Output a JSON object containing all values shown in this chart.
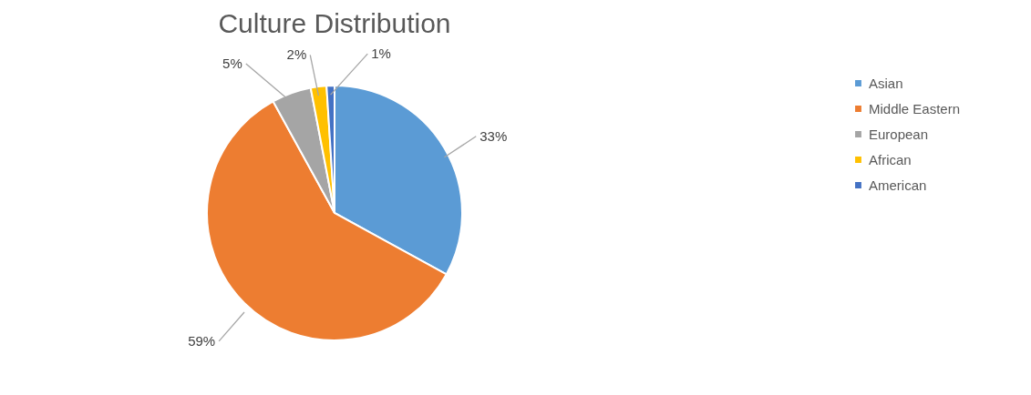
{
  "chart_data": {
    "type": "pie",
    "title": "Culture Distribution",
    "categories": [
      "Asian",
      "Middle Eastern",
      "European",
      "African",
      "American"
    ],
    "values": [
      33,
      59,
      5,
      2,
      1
    ],
    "colors": [
      "#5b9bd5",
      "#ed7d31",
      "#a5a5a5",
      "#ffc000",
      "#4472c4"
    ],
    "value_labels": [
      "33%",
      "59%",
      "5%",
      "2%",
      "1%"
    ],
    "legend": "right"
  }
}
